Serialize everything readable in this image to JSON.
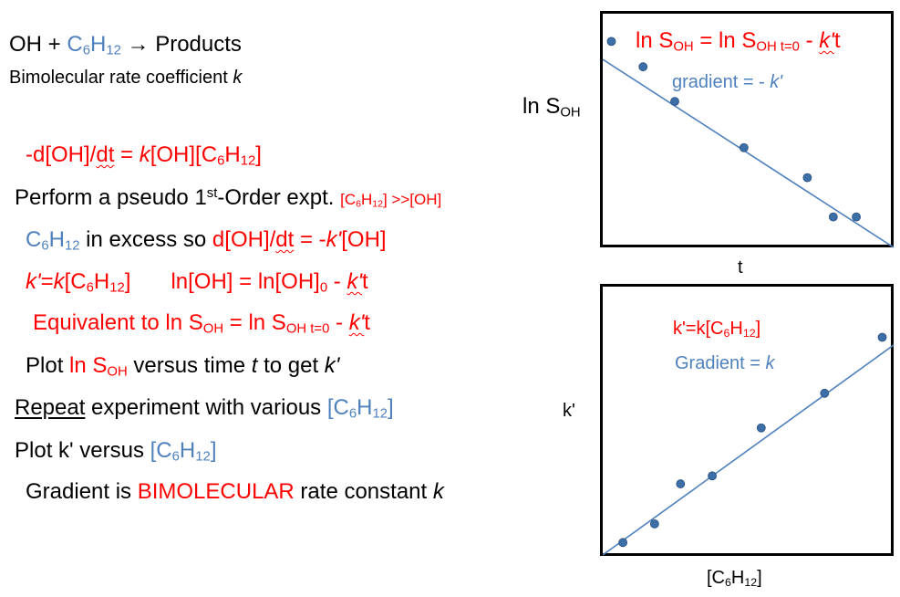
{
  "left": {
    "l1": {
      "a": "OH + ",
      "b": "C",
      "b_sub": "6",
      "c": "H",
      "c_sub": "12",
      "d": " → Products"
    },
    "l2": {
      "a": "Bimolecular rate coefficient ",
      "b": "k"
    },
    "l3": {
      "a": "-d[OH]/",
      "b": "dt",
      "c": " = ",
      "d": "k",
      "e": "[OH][C",
      "f": "6",
      "g": "H",
      "h": "12",
      "i": "]"
    },
    "l4": {
      "a": "Perform a pseudo 1",
      "b": "st",
      "c": "-Order expt. ",
      "d": "[C",
      "e": "6",
      "f": "H",
      "g": "12",
      "h": "] >>[OH]"
    },
    "l5": {
      "a": "C",
      "b": "6",
      "c": "H",
      "d": "12",
      "e": " in excess so  ",
      "f": "d[OH]/",
      "g": "dt",
      "h": " = -",
      "i": "k'",
      "j": "[OH]"
    },
    "l6": {
      "a": "k'",
      "b": "=",
      "c": "k",
      "d": "[C",
      "e": "6",
      "f": "H",
      "g": "12",
      "h": "]",
      "i": "ln[OH] = ln[OH]",
      "j": "0",
      "k": " - ",
      "l": "k'",
      "m": "t"
    },
    "l7": {
      "a": "Equivalent to ln S",
      "b": "OH",
      "c": " = ln S",
      "d": "OH t=0",
      "e": " - ",
      "f": "k'",
      "g": "t"
    },
    "l8": {
      "a": "Plot ",
      "b": "ln S",
      "c": "OH",
      "d": " versus time ",
      "e": "t",
      "f": " to get ",
      "g": "k'"
    },
    "l9": {
      "a": "Repeat",
      "b": " experiment with various ",
      "c": "[C",
      "d": "6",
      "e": "H",
      "f": "12",
      "g": "]"
    },
    "l10": {
      "a": "Plot k' versus ",
      "b": "[C",
      "c": "6",
      "d": "H",
      "e": "12",
      "f": "]"
    },
    "l11": {
      "a": "Gradient is ",
      "b": "BIMOLECULAR",
      "c": " rate constant ",
      "d": "k"
    }
  },
  "top_plot": {
    "eq": {
      "a": "ln S",
      "b": "OH",
      "c": " = ln S",
      "d": "OH t=0",
      "e": " - ",
      "f": "k'",
      "g": "t"
    },
    "gradient": {
      "a": "gradient = - ",
      "b": "k'"
    },
    "ylabel": {
      "a": "ln S",
      "b": "OH"
    },
    "xlabel": "t"
  },
  "bottom_plot": {
    "eq": {
      "a": "k'=k[C",
      "b": "6",
      "c": "H",
      "d": "12",
      "e": "]"
    },
    "gradient": {
      "a": "Gradient = ",
      "b": "k"
    },
    "ylabel": "k'",
    "xlabel": {
      "a": "[C",
      "b": "6",
      "c": "H",
      "d": "12",
      "e": "]"
    }
  },
  "colors": {
    "red": "#ff0000",
    "blue": "#4f81bd",
    "marker": "#3c6ea8"
  },
  "chart_data": [
    {
      "type": "scatter",
      "title": "",
      "xlabel": "t",
      "ylabel": "ln S_OH",
      "trendline": "linear, negative slope",
      "points": [
        [
          0.03,
          0.88
        ],
        [
          0.14,
          0.77
        ],
        [
          0.25,
          0.62
        ],
        [
          0.49,
          0.42
        ],
        [
          0.71,
          0.29
        ],
        [
          0.8,
          0.12
        ],
        [
          0.88,
          0.12
        ]
      ]
    },
    {
      "type": "scatter",
      "title": "",
      "xlabel": "[C6H12]",
      "ylabel": "k'",
      "trendline": "linear, positive slope",
      "points": [
        [
          0.07,
          0.04
        ],
        [
          0.18,
          0.11
        ],
        [
          0.27,
          0.26
        ],
        [
          0.38,
          0.29
        ],
        [
          0.55,
          0.47
        ],
        [
          0.77,
          0.6
        ],
        [
          0.97,
          0.81
        ]
      ]
    }
  ]
}
